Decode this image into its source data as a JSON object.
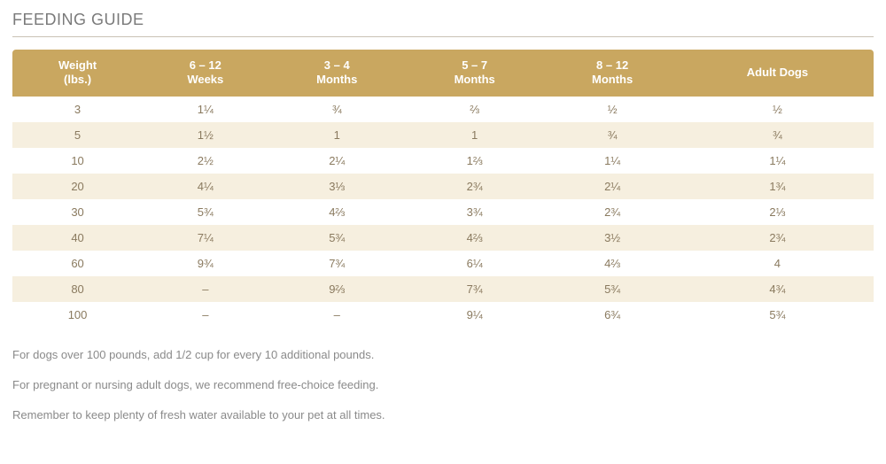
{
  "title": "FEEDING GUIDE",
  "table": {
    "header_bg": "#c9a760",
    "header_color": "#ffffff",
    "stripe_bg": "#f6efdf",
    "cell_color": "#8a7a5f",
    "columns": [
      "Weight\n(lbs.)",
      "6 – 12\nWeeks",
      "3 – 4\nMonths",
      "5 – 7\nMonths",
      "8 – 12\nMonths",
      "Adult Dogs"
    ],
    "rows": [
      [
        "3",
        "1¼",
        "¾",
        "⅔",
        "½",
        "½"
      ],
      [
        "5",
        "1½",
        "1",
        "1",
        "¾",
        "¾"
      ],
      [
        "10",
        "2½",
        "2¼",
        "1⅔",
        "1¼",
        "1¼"
      ],
      [
        "20",
        "4¼",
        "3⅓",
        "2¾",
        "2¼",
        "1¾"
      ],
      [
        "30",
        "5¾",
        "4⅔",
        "3¾",
        "2¾",
        "2⅓"
      ],
      [
        "40",
        "7¼",
        "5¾",
        "4⅔",
        "3½",
        "2¾"
      ],
      [
        "60",
        "9¾",
        "7¾",
        "6¼",
        "4⅔",
        "4"
      ],
      [
        "80",
        "–",
        "9⅔",
        "7¾",
        "5¾",
        "4¾"
      ],
      [
        "100",
        "–",
        "–",
        "9¼",
        "6¾",
        "5¾"
      ]
    ]
  },
  "notes": [
    "For dogs over 100 pounds, add 1/2 cup for every 10 additional pounds.",
    "For pregnant or nursing adult dogs, we recommend free-choice feeding.",
    "Remember to keep plenty of fresh water available to your pet at all times."
  ]
}
